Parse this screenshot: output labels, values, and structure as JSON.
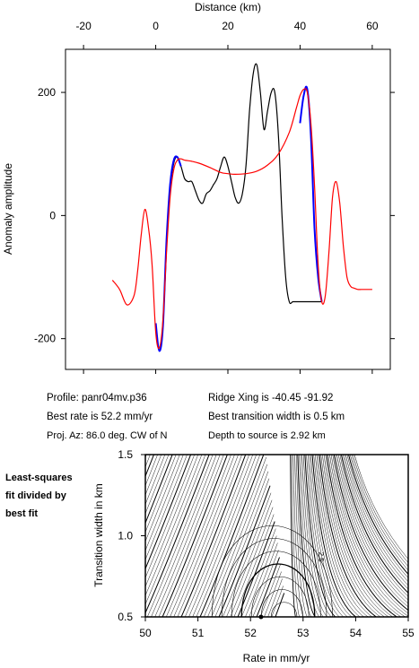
{
  "chart_data": [
    {
      "type": "line",
      "xlabel": "Distance (km)",
      "ylabel": "Anomaly amplitude",
      "xlim": [
        -25,
        65
      ],
      "ylim": [
        -250,
        270
      ],
      "x_ticks": [
        -20,
        0,
        20,
        40,
        60
      ],
      "y_ticks": [
        -200,
        0,
        200
      ],
      "grid": false,
      "series": [
        {
          "color": "#000000",
          "x": [
            0,
            1,
            2,
            3,
            4,
            5,
            6,
            7,
            8,
            9,
            10,
            11,
            12,
            13,
            14,
            15,
            16,
            17,
            18,
            19,
            20,
            21,
            22,
            23,
            24,
            25,
            26,
            27,
            28,
            29,
            30,
            31,
            32,
            33,
            34,
            35,
            36,
            37,
            38,
            39,
            40,
            41,
            42,
            43,
            44,
            45,
            46
          ],
          "y": [
            -180,
            -220,
            -180,
            -50,
            40,
            85,
            95,
            80,
            60,
            55,
            55,
            40,
            25,
            20,
            35,
            40,
            50,
            60,
            80,
            95,
            80,
            55,
            30,
            20,
            35,
            80,
            170,
            230,
            245,
            200,
            140,
            170,
            200,
            200,
            130,
            0,
            -100,
            -140,
            -140,
            -140,
            -140,
            -140,
            -140,
            -140,
            -140,
            -140,
            -140
          ]
        },
        {
          "color": "#0000ff",
          "x": [
            0,
            1,
            2,
            3,
            4,
            5,
            6,
            7,
            40,
            41,
            42,
            43,
            44,
            45,
            46
          ],
          "y": [
            -175,
            -220,
            -180,
            -40,
            50,
            90,
            95,
            80,
            150,
            195,
            205,
            130,
            -20,
            -100,
            -140
          ]
        },
        {
          "color": "#ff0000",
          "x": [
            -12,
            -10,
            -8,
            -6,
            -5,
            -4,
            -3,
            -2,
            -1,
            0,
            1,
            2,
            3,
            4,
            5,
            6,
            7,
            8,
            10,
            12,
            15,
            18,
            20,
            22,
            25,
            28,
            31,
            34,
            37,
            39,
            40,
            41,
            42,
            43,
            44,
            45,
            46,
            47,
            48,
            49,
            50,
            51,
            52,
            53,
            54,
            55,
            56,
            57,
            58,
            60
          ],
          "y": [
            -105,
            -120,
            -145,
            -130,
            -90,
            -30,
            10,
            -20,
            -80,
            -190,
            -215,
            -170,
            -60,
            30,
            75,
            90,
            92,
            90,
            88,
            85,
            78,
            70,
            68,
            67,
            68,
            72,
            82,
            100,
            135,
            175,
            195,
            205,
            200,
            150,
            50,
            -80,
            -140,
            -130,
            -60,
            30,
            55,
            20,
            -50,
            -100,
            -115,
            -118,
            -120,
            -120,
            -120,
            -120
          ]
        }
      ]
    },
    {
      "type": "heatmap",
      "xlabel": "Rate in mm/yr",
      "ylabel": "Transition width in km",
      "xlim": [
        50,
        55
      ],
      "ylim": [
        0.5,
        1.5
      ],
      "x_ticks": [
        "50",
        "51",
        "52",
        "53",
        "54",
        "55"
      ],
      "y_ticks": [
        "0.5",
        "1.0",
        "1.5"
      ],
      "best_fit": {
        "x": 52.2,
        "y": 0.5
      },
      "contour_label": "2.5"
    }
  ],
  "info": {
    "profile": "Profile: panr04mv.p36",
    "best_rate": "Best rate is 52.2 mm/yr",
    "proj_az": "Proj. Az: 86.0 deg. CW of N",
    "ridge_xing": "Ridge Xing is -40.45 -91.92",
    "best_transition": "Best transition width is 0.5 km",
    "depth": "Depth to source is   2.92 km"
  },
  "side_note": [
    "Least-squares",
    "fit divided by",
    "best fit"
  ]
}
